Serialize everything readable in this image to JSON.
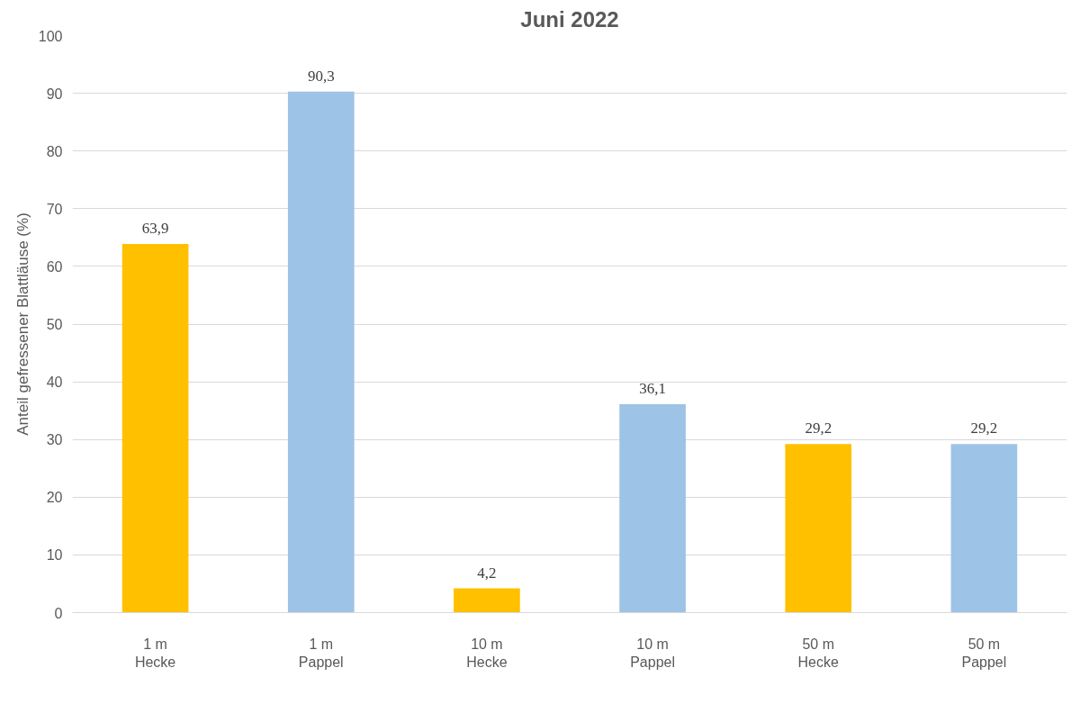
{
  "chart_data": {
    "type": "bar",
    "title": "Juni 2022",
    "ylabel": "Anteil gefressener Blattläuse (%)",
    "categories": [
      "1 m\nHecke",
      "1 m\nPappel",
      "10 m\nHecke",
      "10 m\nPappel",
      "50 m\nHecke",
      "50 m\nPappel"
    ],
    "values": [
      63.9,
      90.3,
      4.2,
      36.1,
      29.2,
      29.2
    ],
    "colors": [
      "#ffc000",
      "#9dc3e6",
      "#ffc000",
      "#9dc3e6",
      "#ffc000",
      "#9dc3e6"
    ],
    "value_labels": [
      "63,9",
      "90,3",
      "4,2",
      "36,1",
      "29,2",
      "29,2"
    ],
    "ylim": [
      0,
      100
    ],
    "yticks": [
      0,
      10,
      20,
      30,
      40,
      50,
      60,
      70,
      80,
      90,
      100
    ],
    "grid": "y"
  }
}
